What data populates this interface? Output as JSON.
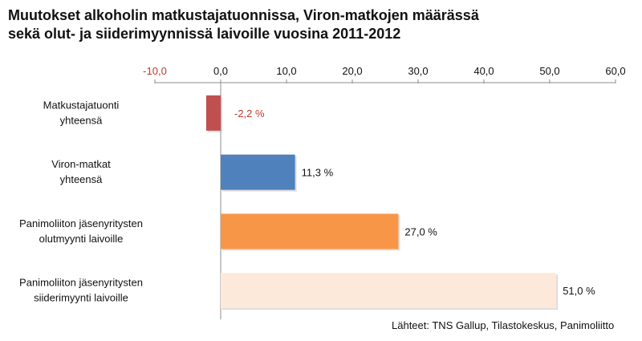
{
  "title_line1": "Muutokset alkoholin matkustajatuonnissa, Viron-matkojen määrässä",
  "title_line2": "sekä olut- ja siiderimyynnissä laivoille vuosina 2011-2012",
  "source": "Lähteet: TNS Gallup, Tilastokeskus,  Panimoliitto",
  "chart_data": {
    "type": "bar",
    "orientation": "horizontal",
    "title": "Muutokset alkoholin matkustajatuonnissa, Viron-matkojen määrässä sekä olut- ja siiderimyynnissä laivoille vuosina 2011-2012",
    "xlim": [
      -10,
      60
    ],
    "xticks": [
      -10,
      0,
      10,
      20,
      30,
      40,
      50,
      60
    ],
    "xtick_labels": [
      "-10,0",
      "0,0",
      "10,0",
      "20,0",
      "30,0",
      "40,0",
      "50,0",
      "60,0"
    ],
    "negative_tick_color": "#c0392b",
    "axis_position": "top",
    "grid": false,
    "categories": [
      [
        "Matkustajatuonti",
        "yhteensä"
      ],
      [
        "Viron-matkat",
        "yhteensä"
      ],
      [
        "Panimoliiton jäsenyritysten",
        "olutmyynti laivoille"
      ],
      [
        "Panimoliiton jäsenyritysten",
        "siiderimyynti laivoille"
      ]
    ],
    "values": [
      -2.2,
      11.3,
      27.0,
      51.0
    ],
    "data_labels": [
      "-2,2 %",
      "11,3 %",
      "27,0 %",
      "51,0 %"
    ],
    "colors": [
      "#c0504d",
      "#4f81bd",
      "#f79646",
      "#fde9d9"
    ],
    "label_colors": [
      "#c0392b",
      "#111111",
      "#111111",
      "#111111"
    ]
  }
}
